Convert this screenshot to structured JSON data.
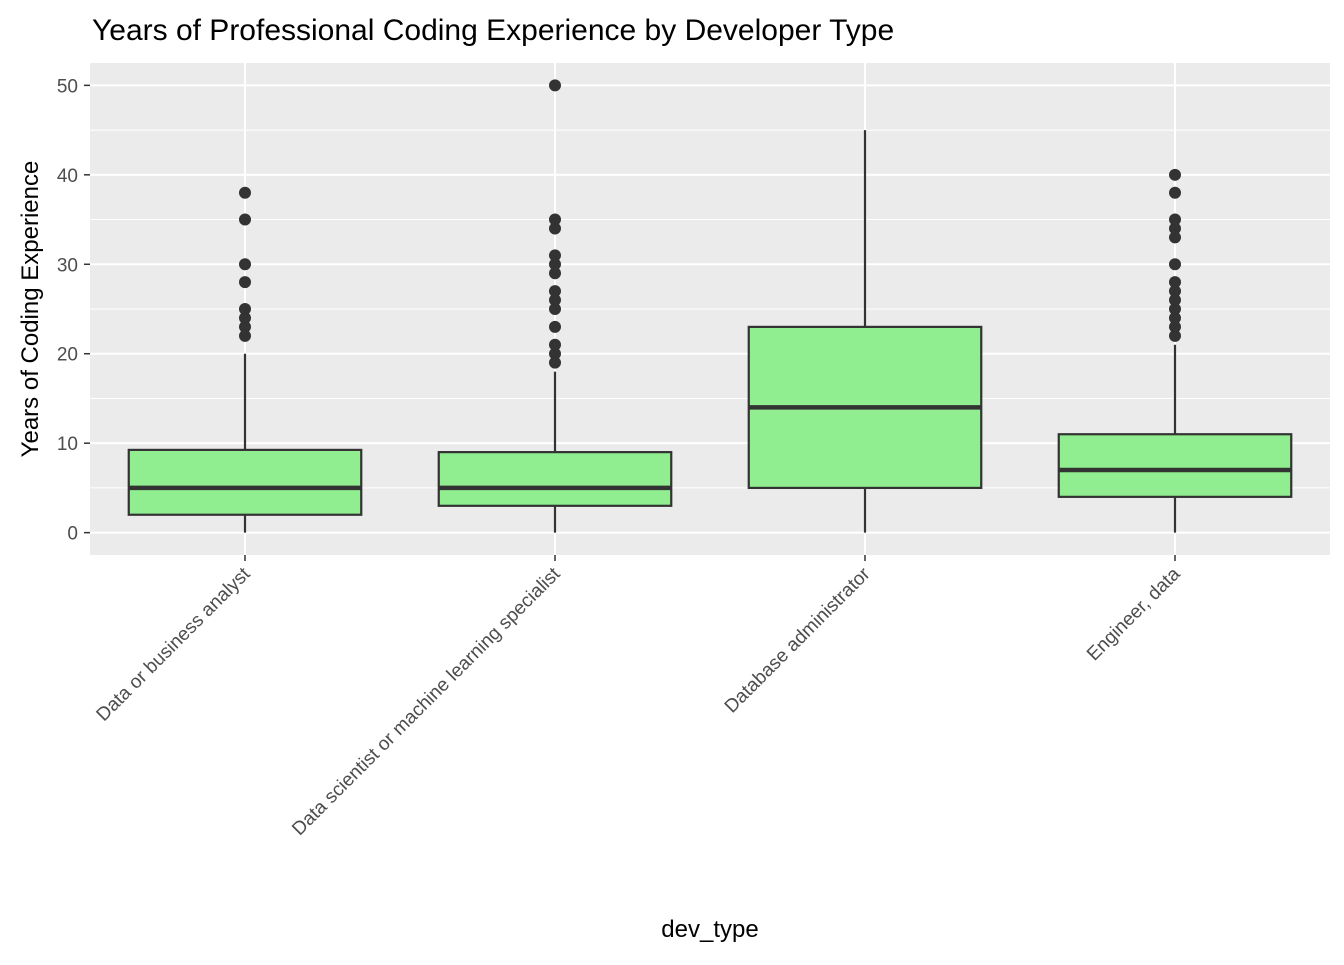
{
  "chart_data": {
    "type": "box",
    "title": "Years of Professional Coding Experience by Developer Type",
    "xlabel": "dev_type",
    "ylabel": "Years of Coding Experience",
    "ylim": [
      -2.5,
      52.5
    ],
    "yticks": [
      0,
      10,
      20,
      30,
      40,
      50
    ],
    "grid": true,
    "fill_color": "#90EE90",
    "panel_color": "#EBEBEB",
    "categories": [
      "Data or business analyst",
      "Data scientist or machine learning specialist",
      "Database administrator",
      "Engineer, data"
    ],
    "boxes": [
      {
        "name": "Data or business analyst",
        "whisker_low": 0,
        "q1": 2,
        "median": 5,
        "q3": 9.25,
        "whisker_high": 20,
        "outliers": [
          22,
          23,
          24,
          25,
          28,
          30,
          35,
          38
        ]
      },
      {
        "name": "Data scientist or machine learning specialist",
        "whisker_low": 0,
        "q1": 3,
        "median": 5,
        "q3": 9,
        "whisker_high": 18,
        "outliers": [
          19,
          20,
          21,
          23,
          25,
          26,
          27,
          29,
          30,
          31,
          34,
          35,
          50
        ]
      },
      {
        "name": "Database administrator",
        "whisker_low": 0,
        "q1": 5,
        "median": 14,
        "q3": 23,
        "whisker_high": 45,
        "outliers": []
      },
      {
        "name": "Engineer, data",
        "whisker_low": 0,
        "q1": 4,
        "median": 7,
        "q3": 11,
        "whisker_high": 21,
        "outliers": [
          22,
          23,
          24,
          25,
          26,
          27,
          28,
          30,
          33,
          34,
          35,
          38,
          40
        ]
      }
    ]
  }
}
